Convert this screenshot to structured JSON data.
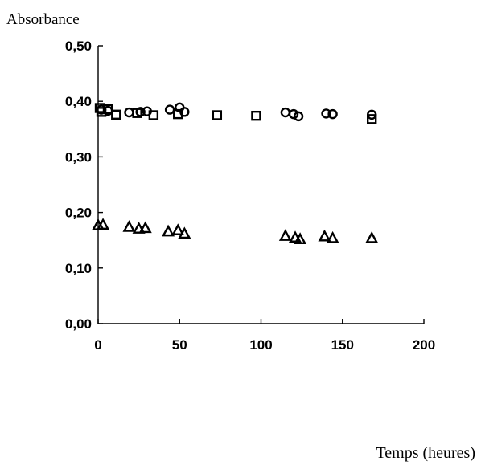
{
  "chart_data": {
    "type": "scatter",
    "ylabel": "Absorbance",
    "xlabel": "Temps (heures)",
    "xlim": [
      0,
      200
    ],
    "ylim": [
      0,
      0.5
    ],
    "x_ticks": [
      {
        "value": 0,
        "label": "0"
      },
      {
        "value": 50,
        "label": "50"
      },
      {
        "value": 100,
        "label": "100"
      },
      {
        "value": 150,
        "label": "150"
      },
      {
        "value": 200,
        "label": "200"
      }
    ],
    "y_ticks": [
      {
        "value": 0,
        "label": "0,00"
      },
      {
        "value": 0.1,
        "label": "0,10"
      },
      {
        "value": 0.2,
        "label": "0,20"
      },
      {
        "value": 0.3,
        "label": "0,30"
      },
      {
        "value": 0.4,
        "label": "0,40"
      },
      {
        "value": 0.5,
        "label": "0,50"
      }
    ],
    "grid": false,
    "series": [
      {
        "marker": "circle",
        "points": [
          {
            "x": 2,
            "y": 0.385
          },
          {
            "x": 6,
            "y": 0.383
          },
          {
            "x": 19,
            "y": 0.38
          },
          {
            "x": 26,
            "y": 0.381
          },
          {
            "x": 30,
            "y": 0.382
          },
          {
            "x": 44,
            "y": 0.385
          },
          {
            "x": 50,
            "y": 0.389
          },
          {
            "x": 53,
            "y": 0.381
          },
          {
            "x": 115,
            "y": 0.38
          },
          {
            "x": 120,
            "y": 0.377
          },
          {
            "x": 123,
            "y": 0.373
          },
          {
            "x": 140,
            "y": 0.378
          },
          {
            "x": 144,
            "y": 0.377
          },
          {
            "x": 168,
            "y": 0.376
          }
        ]
      },
      {
        "marker": "square",
        "points": [
          {
            "x": 1,
            "y": 0.388
          },
          {
            "x": 2,
            "y": 0.381
          },
          {
            "x": 6,
            "y": 0.386
          },
          {
            "x": 11,
            "y": 0.376
          },
          {
            "x": 24,
            "y": 0.379
          },
          {
            "x": 34,
            "y": 0.375
          },
          {
            "x": 49,
            "y": 0.377
          },
          {
            "x": 73,
            "y": 0.375
          },
          {
            "x": 97,
            "y": 0.374
          },
          {
            "x": 168,
            "y": 0.368
          }
        ]
      },
      {
        "marker": "triangle",
        "points": [
          {
            "x": 0,
            "y": 0.177
          },
          {
            "x": 3,
            "y": 0.178
          },
          {
            "x": 19,
            "y": 0.174
          },
          {
            "x": 25,
            "y": 0.171
          },
          {
            "x": 29,
            "y": 0.172
          },
          {
            "x": 43,
            "y": 0.166
          },
          {
            "x": 49,
            "y": 0.168
          },
          {
            "x": 53,
            "y": 0.162
          },
          {
            "x": 115,
            "y": 0.158
          },
          {
            "x": 121,
            "y": 0.155
          },
          {
            "x": 124,
            "y": 0.152
          },
          {
            "x": 139,
            "y": 0.157
          },
          {
            "x": 144,
            "y": 0.154
          },
          {
            "x": 168,
            "y": 0.154
          }
        ]
      }
    ]
  }
}
